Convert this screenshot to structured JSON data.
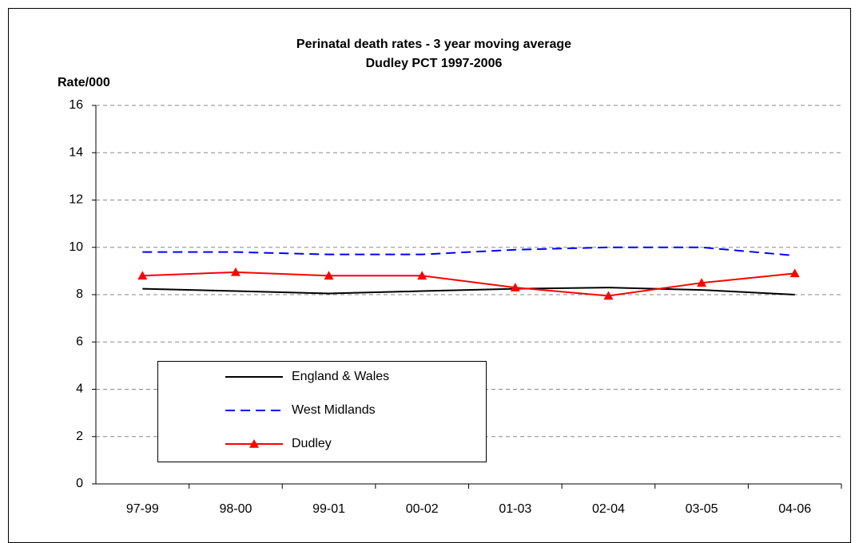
{
  "chart_data": {
    "type": "line",
    "title": "Perinatal death rates - 3 year moving average",
    "subtitle": "Dudley PCT 1997-2006",
    "y_label": "Rate/000",
    "categories": [
      "97-99",
      "98-00",
      "99-01",
      "00-02",
      "01-03",
      "02-04",
      "03-05",
      "04-06"
    ],
    "series": [
      {
        "name": "England & Wales",
        "color": "#000000",
        "dash": "solid",
        "marker": "none",
        "values": [
          8.25,
          8.15,
          8.05,
          8.15,
          8.25,
          8.3,
          8.2,
          8.0
        ]
      },
      {
        "name": "West Midlands",
        "color": "#0000ff",
        "dash": "dashed",
        "marker": "none",
        "values": [
          9.8,
          9.8,
          9.7,
          9.7,
          9.9,
          10.0,
          10.0,
          9.65
        ]
      },
      {
        "name": "Dudley",
        "color": "#ff0000",
        "dash": "solid",
        "marker": "triangle",
        "values": [
          8.8,
          8.95,
          8.8,
          8.8,
          8.3,
          7.95,
          8.5,
          8.9
        ]
      }
    ],
    "ylim": [
      0,
      16
    ],
    "yticks": [
      0,
      2,
      4,
      6,
      8,
      10,
      12,
      14,
      16
    ],
    "grid": true,
    "legend": "lower left"
  }
}
